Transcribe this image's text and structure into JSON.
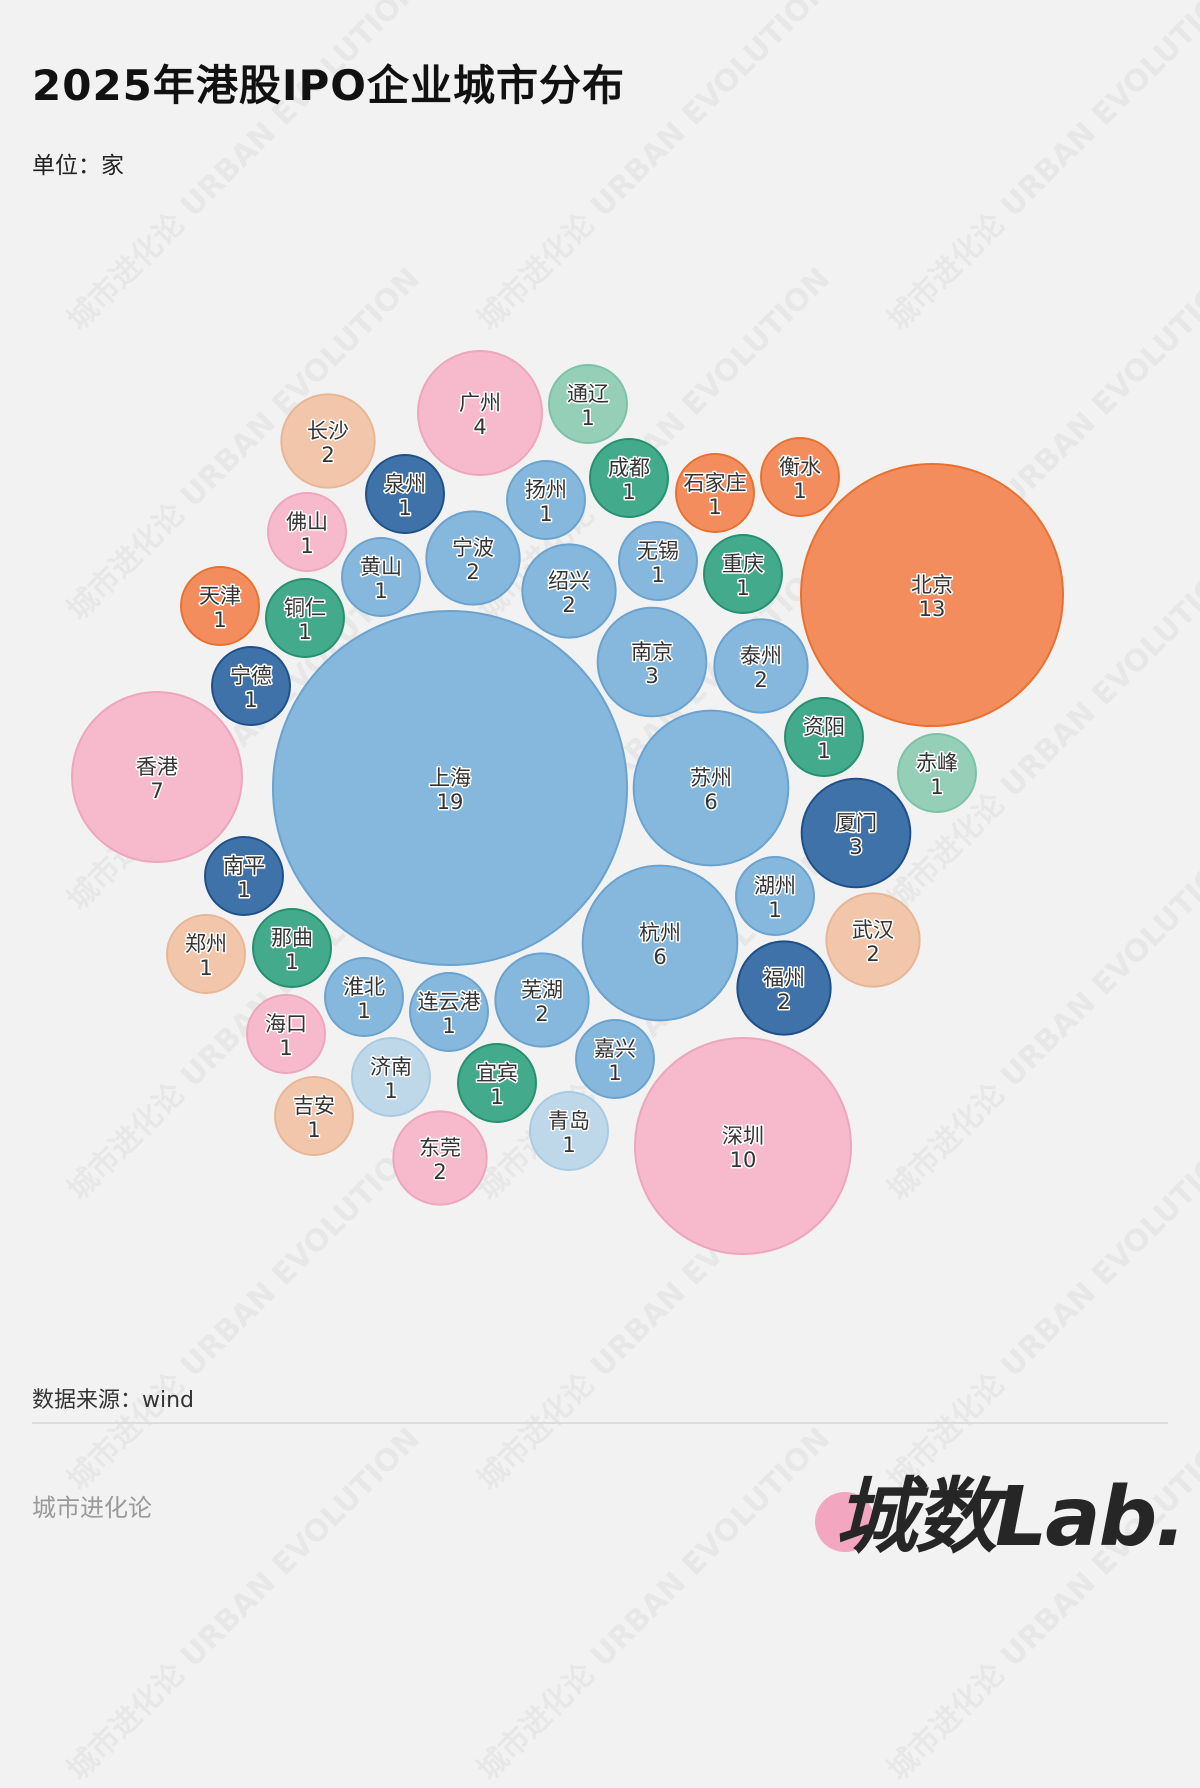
{
  "title": "2025年港股IPO企业城市分布",
  "unit": "单位：家",
  "source": "数据来源：wind",
  "brand": "城市进化论",
  "logo_text": "城数Lab.",
  "watermark": "城市进化论 URBAN EVOLUTION",
  "chart_data": {
    "type": "bubble",
    "title": "2025年港股IPO企业城市分布",
    "unit": "家",
    "color_groups": {
      "blue": {
        "fill": "#86b7dd",
        "stroke": "#6aa3cf"
      },
      "darkblue": {
        "fill": "#3f72a8",
        "stroke": "#1f4f8a"
      },
      "pink": {
        "fill": "#f7b9cc",
        "stroke": "#eea6bc"
      },
      "orange": {
        "fill": "#f48d5e",
        "stroke": "#e8712f"
      },
      "green": {
        "fill": "#43aa8c",
        "stroke": "#24906f"
      },
      "teal": {
        "fill": "#95cfb8",
        "stroke": "#7cc2a7"
      },
      "peach": {
        "fill": "#f2c6ab",
        "stroke": "#e9b597"
      },
      "lightblue": {
        "fill": "#bed8ea",
        "stroke": "#a9cae2"
      }
    },
    "bubbles": [
      {
        "city": "上海",
        "value": 19,
        "group": "blue"
      },
      {
        "city": "北京",
        "value": 13,
        "group": "orange"
      },
      {
        "city": "深圳",
        "value": 10,
        "group": "pink"
      },
      {
        "city": "香港",
        "value": 7,
        "group": "pink"
      },
      {
        "city": "苏州",
        "value": 6,
        "group": "blue"
      },
      {
        "city": "杭州",
        "value": 6,
        "group": "blue"
      },
      {
        "city": "广州",
        "value": 4,
        "group": "pink"
      },
      {
        "city": "南京",
        "value": 3,
        "group": "blue"
      },
      {
        "city": "厦门",
        "value": 3,
        "group": "darkblue"
      },
      {
        "city": "泰州",
        "value": 2,
        "group": "blue"
      },
      {
        "city": "宁波",
        "value": 2,
        "group": "blue"
      },
      {
        "city": "绍兴",
        "value": 2,
        "group": "blue"
      },
      {
        "city": "芜湖",
        "value": 2,
        "group": "blue"
      },
      {
        "city": "福州",
        "value": 2,
        "group": "darkblue"
      },
      {
        "city": "武汉",
        "value": 2,
        "group": "peach"
      },
      {
        "city": "东莞",
        "value": 2,
        "group": "pink"
      },
      {
        "city": "长沙",
        "value": 2,
        "group": "peach"
      },
      {
        "city": "通辽",
        "value": 1,
        "group": "teal"
      },
      {
        "city": "成都",
        "value": 1,
        "group": "green"
      },
      {
        "city": "石家庄",
        "value": 1,
        "group": "orange"
      },
      {
        "city": "衡水",
        "value": 1,
        "group": "orange"
      },
      {
        "city": "扬州",
        "value": 1,
        "group": "blue"
      },
      {
        "city": "泉州",
        "value": 1,
        "group": "darkblue"
      },
      {
        "city": "佛山",
        "value": 1,
        "group": "pink"
      },
      {
        "city": "黄山",
        "value": 1,
        "group": "blue"
      },
      {
        "city": "无锡",
        "value": 1,
        "group": "blue"
      },
      {
        "city": "重庆",
        "value": 1,
        "group": "green"
      },
      {
        "city": "天津",
        "value": 1,
        "group": "orange"
      },
      {
        "city": "铜仁",
        "value": 1,
        "group": "green"
      },
      {
        "city": "宁德",
        "value": 1,
        "group": "darkblue"
      },
      {
        "city": "资阳",
        "value": 1,
        "group": "green"
      },
      {
        "city": "赤峰",
        "value": 1,
        "group": "teal"
      },
      {
        "city": "湖州",
        "value": 1,
        "group": "blue"
      },
      {
        "city": "南平",
        "value": 1,
        "group": "darkblue"
      },
      {
        "city": "郑州",
        "value": 1,
        "group": "peach"
      },
      {
        "city": "那曲",
        "value": 1,
        "group": "green"
      },
      {
        "city": "淮北",
        "value": 1,
        "group": "blue"
      },
      {
        "city": "连云港",
        "value": 1,
        "group": "blue"
      },
      {
        "city": "海口",
        "value": 1,
        "group": "pink"
      },
      {
        "city": "嘉兴",
        "value": 1,
        "group": "blue"
      },
      {
        "city": "济南",
        "value": 1,
        "group": "lightblue"
      },
      {
        "city": "宜宾",
        "value": 1,
        "group": "green"
      },
      {
        "city": "吉安",
        "value": 1,
        "group": "peach"
      },
      {
        "city": "青岛",
        "value": 1,
        "group": "lightblue"
      }
    ]
  }
}
